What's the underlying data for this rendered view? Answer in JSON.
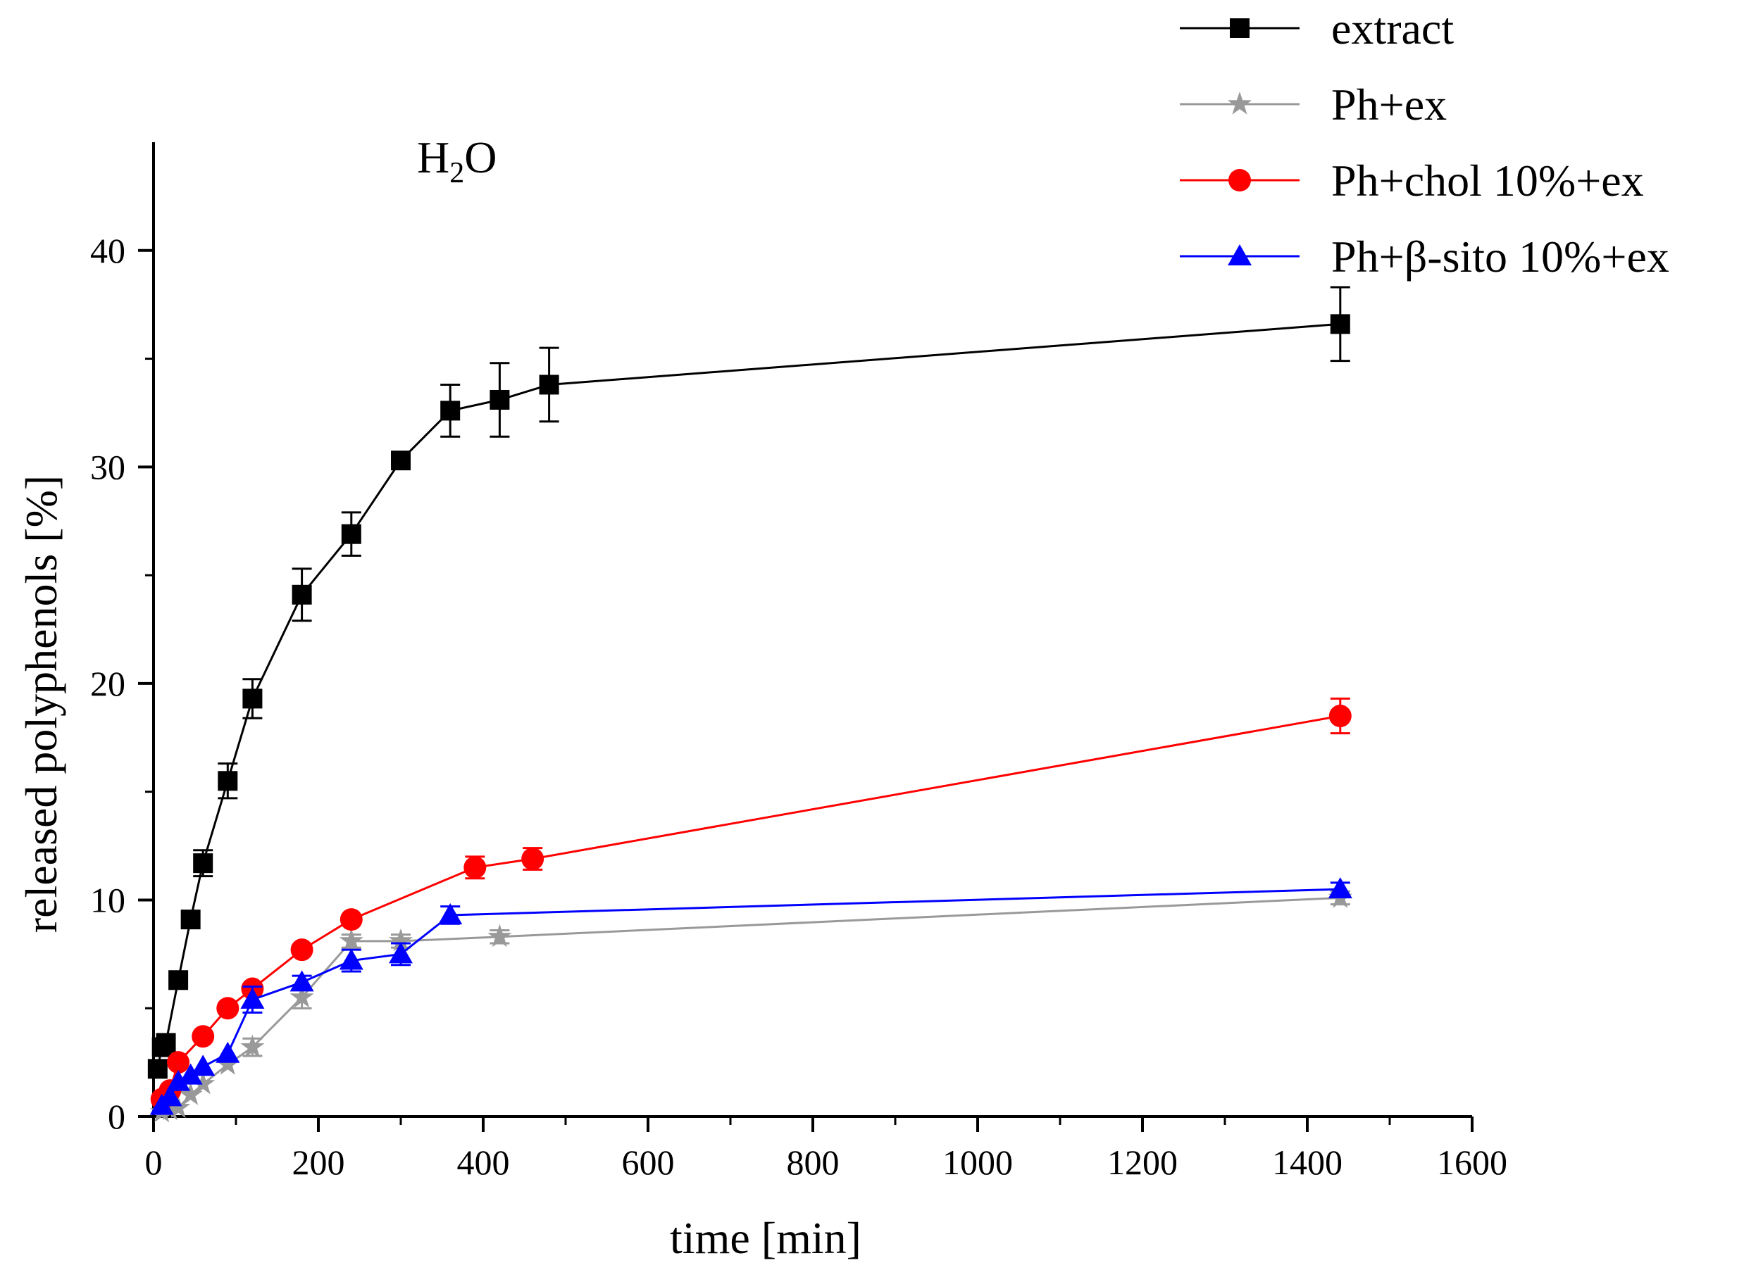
{
  "chart_data": {
    "type": "line",
    "title": "",
    "annotation": {
      "main": "H",
      "sub": "2",
      "tail": "O"
    },
    "xlabel": "time [min]",
    "ylabel": "released polyphenols [%]",
    "xlim": [
      0,
      1600
    ],
    "ylim": [
      0,
      45
    ],
    "x_ticks": [
      0,
      200,
      400,
      600,
      800,
      1000,
      1200,
      1400,
      1600
    ],
    "x_tick_labels": [
      "0",
      "200",
      "400",
      "600",
      "800",
      "1000",
      "1200",
      "1400",
      "1600"
    ],
    "y_ticks": [
      0,
      10,
      20,
      30,
      40
    ],
    "y_tick_labels": [
      "0",
      "10",
      "20",
      "30",
      "40"
    ],
    "grid": false,
    "legend_position": "top-right",
    "series": [
      {
        "name": "extract",
        "color": "#000000",
        "marker": "square",
        "points": [
          {
            "x": 5,
            "y": 2.2,
            "err": 0
          },
          {
            "x": 10,
            "y": 3.2,
            "err": 0
          },
          {
            "x": 15,
            "y": 3.4,
            "err": 0
          },
          {
            "x": 30,
            "y": 6.3,
            "err": 0
          },
          {
            "x": 45,
            "y": 9.1,
            "err": 0
          },
          {
            "x": 60,
            "y": 11.7,
            "err": 0.6
          },
          {
            "x": 90,
            "y": 15.5,
            "err": 0.8
          },
          {
            "x": 120,
            "y": 19.3,
            "err": 0.9
          },
          {
            "x": 180,
            "y": 24.1,
            "err": 1.2
          },
          {
            "x": 240,
            "y": 26.9,
            "err": 1.0
          },
          {
            "x": 300,
            "y": 30.3,
            "err": 0
          },
          {
            "x": 360,
            "y": 32.6,
            "err": 1.2
          },
          {
            "x": 420,
            "y": 33.1,
            "err": 1.7
          },
          {
            "x": 480,
            "y": 33.8,
            "err": 1.7
          },
          {
            "x": 1440,
            "y": 36.6,
            "err": 1.7
          }
        ]
      },
      {
        "name": "Ph+ex",
        "color": "#999999",
        "marker": "star",
        "points": [
          {
            "x": 10,
            "y": 0.2,
            "err": 0
          },
          {
            "x": 20,
            "y": 0.3,
            "err": 0
          },
          {
            "x": 30,
            "y": 0.4,
            "err": 0
          },
          {
            "x": 45,
            "y": 1.0,
            "err": 0
          },
          {
            "x": 60,
            "y": 1.5,
            "err": 0
          },
          {
            "x": 90,
            "y": 2.4,
            "err": 0
          },
          {
            "x": 120,
            "y": 3.2,
            "err": 0.4
          },
          {
            "x": 180,
            "y": 5.5,
            "err": 0.5
          },
          {
            "x": 240,
            "y": 8.1,
            "err": 0.3
          },
          {
            "x": 300,
            "y": 8.1,
            "err": 0.3
          },
          {
            "x": 420,
            "y": 8.3,
            "err": 0.3
          },
          {
            "x": 1440,
            "y": 10.1,
            "err": 0.3
          }
        ]
      },
      {
        "name": "Ph+chol 10%+ex",
        "color": "#ff0000",
        "marker": "circle",
        "points": [
          {
            "x": 10,
            "y": 0.8,
            "err": 0
          },
          {
            "x": 20,
            "y": 1.2,
            "err": 0
          },
          {
            "x": 30,
            "y": 2.5,
            "err": 0
          },
          {
            "x": 60,
            "y": 3.7,
            "err": 0
          },
          {
            "x": 90,
            "y": 5.0,
            "err": 0
          },
          {
            "x": 120,
            "y": 5.9,
            "err": 0
          },
          {
            "x": 180,
            "y": 7.7,
            "err": 0
          },
          {
            "x": 240,
            "y": 9.1,
            "err": 0
          },
          {
            "x": 390,
            "y": 11.5,
            "err": 0.5
          },
          {
            "x": 460,
            "y": 11.9,
            "err": 0.5
          },
          {
            "x": 1440,
            "y": 18.5,
            "err": 0.8
          }
        ]
      },
      {
        "name": "Ph+β-sito 10%+ex",
        "color": "#0000ff",
        "marker": "triangle",
        "points": [
          {
            "x": 10,
            "y": 0.5,
            "err": 0
          },
          {
            "x": 20,
            "y": 0.9,
            "err": 0
          },
          {
            "x": 30,
            "y": 1.6,
            "err": 0
          },
          {
            "x": 45,
            "y": 1.9,
            "err": 0
          },
          {
            "x": 60,
            "y": 2.3,
            "err": 0
          },
          {
            "x": 90,
            "y": 2.9,
            "err": 0
          },
          {
            "x": 120,
            "y": 5.4,
            "err": 0.6
          },
          {
            "x": 180,
            "y": 6.2,
            "err": 0.3
          },
          {
            "x": 240,
            "y": 7.2,
            "err": 0.5
          },
          {
            "x": 300,
            "y": 7.5,
            "err": 0.5
          },
          {
            "x": 360,
            "y": 9.3,
            "err": 0.4
          },
          {
            "x": 1440,
            "y": 10.5,
            "err": 0.3
          }
        ]
      }
    ]
  }
}
